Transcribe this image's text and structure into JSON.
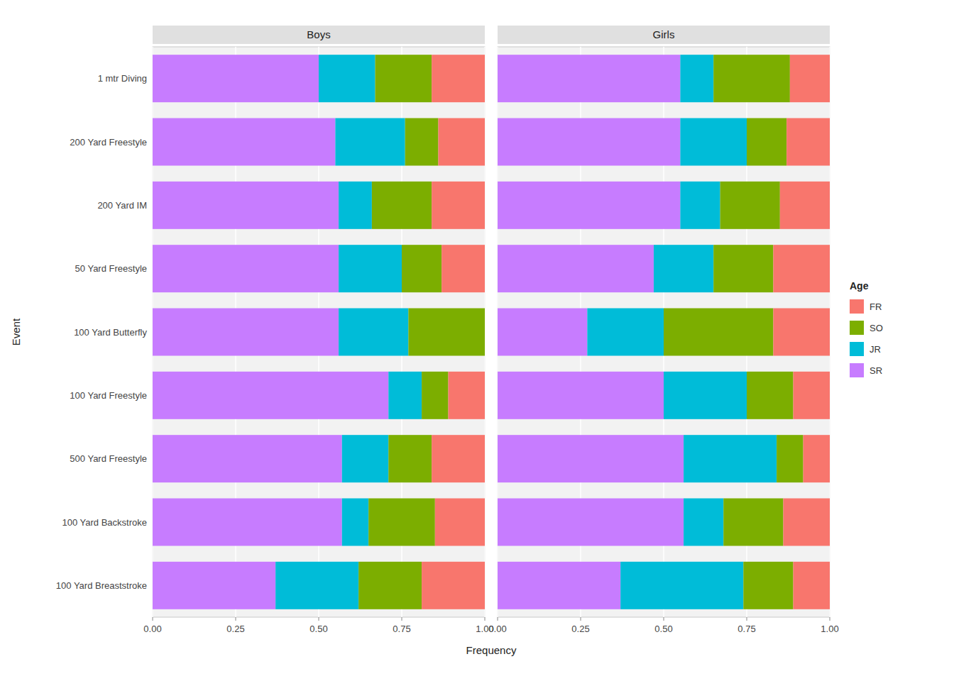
{
  "chart_data": [
    {
      "type": "bar",
      "title": "Boys",
      "orientation": "horizontal",
      "stacked": true,
      "grid": true,
      "legend": false,
      "y_label": "Event",
      "x_label": "Frequency",
      "categories": [
        "1 mtr Diving",
        "200 Yard Freestyle",
        "200 Yard IM",
        "50 Yard Freestyle",
        "100 Yard Butterfly",
        "100 Yard Freestyle",
        "500 Yard Freestyle",
        "100 Yard Backstroke",
        "100 Yard Breaststroke"
      ],
      "series": [
        {
          "name": "SR",
          "color": "#C77CFF",
          "values": [
            0.5,
            0.55,
            0.56,
            0.56,
            0.56,
            0.71,
            0.57,
            0.57,
            0.37
          ]
        },
        {
          "name": "JR",
          "color": "#00BCD8",
          "values": [
            0.17,
            0.21,
            0.1,
            0.19,
            0.21,
            0.1,
            0.14,
            0.08,
            0.25
          ]
        },
        {
          "name": "SO",
          "color": "#7CAE00",
          "values": [
            0.17,
            0.1,
            0.18,
            0.12,
            0.23,
            0.08,
            0.13,
            0.2,
            0.19
          ]
        },
        {
          "name": "FR",
          "color": "#F8766D",
          "values": [
            0.16,
            0.14,
            0.16,
            0.13,
            0.0,
            0.11,
            0.16,
            0.15,
            0.19
          ]
        }
      ],
      "xlim": [
        0,
        1.0
      ],
      "xticks": [
        {
          "value": 0,
          "label": "0.00"
        },
        {
          "value": 0.25,
          "label": "0.25"
        },
        {
          "value": 0.5,
          "label": "0.50"
        },
        {
          "value": 0.75,
          "label": "0.75"
        },
        {
          "value": 1.0,
          "label": "1.00"
        }
      ]
    },
    {
      "type": "bar",
      "title": "Girls",
      "orientation": "horizontal",
      "stacked": true,
      "grid": true,
      "legend": "right",
      "legend_title": "Age",
      "tick_labels": "x",
      "categories": [
        "1 mtr Diving",
        "200 Yard Freestyle",
        "200 Yard IM",
        "50 Yard Freestyle",
        "100 Yard Butterfly",
        "100 Yard Freestyle",
        "500 Yard Freestyle",
        "100 Yard Backstroke",
        "100 Yard Breaststroke"
      ],
      "series": [
        {
          "name": "SR",
          "color": "#C77CFF",
          "values": [
            0.55,
            0.55,
            0.55,
            0.47,
            0.27,
            0.5,
            0.56,
            0.56,
            0.37
          ]
        },
        {
          "name": "JR",
          "color": "#00BCD8",
          "values": [
            0.1,
            0.2,
            0.12,
            0.18,
            0.23,
            0.25,
            0.28,
            0.12,
            0.37
          ]
        },
        {
          "name": "SO",
          "color": "#7CAE00",
          "values": [
            0.23,
            0.12,
            0.18,
            0.18,
            0.33,
            0.14,
            0.08,
            0.18,
            0.15
          ]
        },
        {
          "name": "FR",
          "color": "#F8766D",
          "values": [
            0.12,
            0.13,
            0.15,
            0.17,
            0.17,
            0.11,
            0.08,
            0.14,
            0.11
          ]
        }
      ],
      "xlim": [
        0,
        1.0
      ],
      "xticks": [
        {
          "value": 0,
          "label": "0.00"
        },
        {
          "value": 0.25,
          "label": "0.25"
        },
        {
          "value": 0.5,
          "label": "0.50"
        },
        {
          "value": 0.75,
          "label": "0.75"
        },
        {
          "value": 1.0,
          "label": "1.00"
        }
      ]
    }
  ]
}
